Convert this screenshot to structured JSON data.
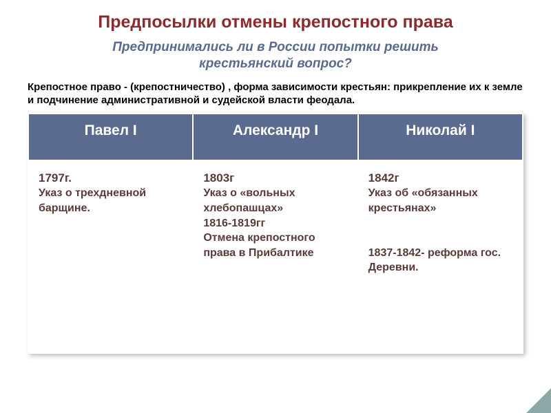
{
  "colors": {
    "title_color": "#8b2b2b",
    "subtitle_color": "#5a6a8a",
    "header_bg": "#5b6b8f",
    "cell_text_color": "#5a3a36",
    "corner_color": "#8aa8a8"
  },
  "title": "Предпосылки отмены крепостного  права",
  "subtitle_line1": "Предпринимались ли в России попытки решить",
  "subtitle_line2": "крестьянский вопрос?",
  "definition": "Крепостное право - (крепостничество) , форма зависимости крестьян: прикрепление их к земле и подчинение административной и судейской власти феодала.",
  "table": {
    "headers": [
      "Павел I",
      "Александр  I",
      "Николай I"
    ],
    "cells": [
      {
        "year": "1797г.",
        "text": "Указ о трехдневной барщине."
      },
      {
        "year": "1803г",
        "text": "Указ о «вольных хлебопашцах»\n1816-1819гг\nОтмена крепостного права в Прибалтике"
      },
      {
        "year": "1842г",
        "text": "Указ об «обязанных крестьянах»\n\n1837-1842- реформа гос. Деревни."
      }
    ]
  }
}
